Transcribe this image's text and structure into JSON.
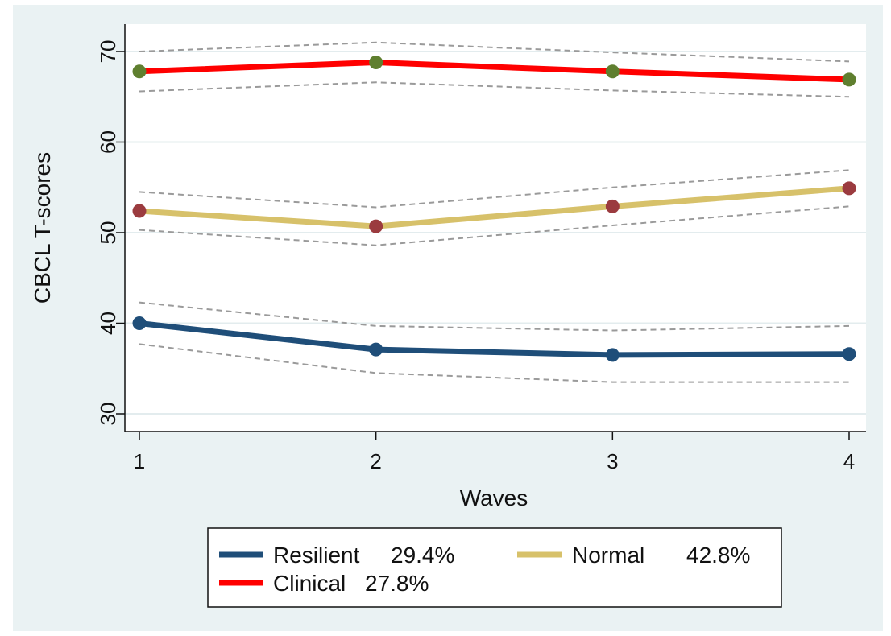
{
  "chart_data": {
    "type": "line",
    "xlabel": "Waves",
    "ylabel": "CBCL T-scores",
    "x": [
      1,
      2,
      3,
      4
    ],
    "xlim": [
      1,
      4
    ],
    "ylim": [
      30,
      70
    ],
    "xticks": [
      1,
      2,
      3,
      4
    ],
    "yticks": [
      30,
      40,
      50,
      60,
      70
    ],
    "grid": "horizontal",
    "legend_position": "bottom",
    "series": [
      {
        "name": "Resilient",
        "share": "29.4%",
        "values": [
          40.0,
          37.1,
          36.5,
          36.6
        ],
        "ci_upper": [
          42.3,
          39.7,
          39.2,
          39.7
        ],
        "ci_lower": [
          37.7,
          34.5,
          33.5,
          33.5
        ],
        "line_color": "#1f4e79",
        "marker_color": "#1f4e79"
      },
      {
        "name": "Normal",
        "share": "42.8%",
        "values": [
          52.4,
          50.7,
          52.9,
          54.9
        ],
        "ci_upper": [
          54.5,
          52.8,
          55.0,
          56.9
        ],
        "ci_lower": [
          50.3,
          48.6,
          50.8,
          52.9
        ],
        "line_color": "#d7c16a",
        "marker_color": "#9b3b3f"
      },
      {
        "name": "Clinical",
        "share": "27.8%",
        "values": [
          67.8,
          68.8,
          67.8,
          66.9
        ],
        "ci_upper": [
          70.0,
          71.0,
          69.9,
          68.9
        ],
        "ci_lower": [
          65.6,
          66.6,
          65.7,
          65.0
        ],
        "line_color": "#ff0000",
        "marker_color": "#5f7f2f"
      }
    ],
    "colors": {
      "page_background": "#eaf2f3",
      "plot_background": "#ffffff",
      "grid": "#e3ecee",
      "ci_line": "#9a9a9a"
    }
  }
}
